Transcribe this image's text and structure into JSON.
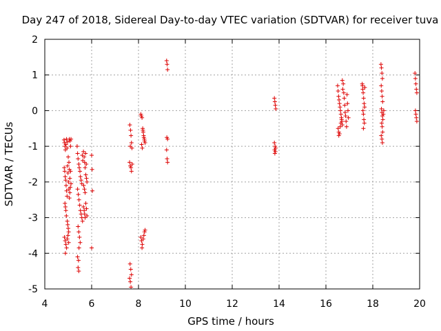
{
  "chart_data": {
    "type": "scatter",
    "title": "Day 247 of 2018, Sidereal Day-to-day VTEC variation (SDTVAR) for receiver tuva",
    "xlabel": "GPS time / hours",
    "ylabel": "SDTVAR / TECUs",
    "xlim": [
      4,
      20
    ],
    "ylim": [
      -5,
      2
    ],
    "xticks": [
      "4",
      "6",
      "8",
      "10",
      "12",
      "14",
      "16",
      "18",
      "20"
    ],
    "yticks": [
      "-5",
      "-4",
      "-3",
      "-2",
      "-1",
      "0",
      "1",
      "2"
    ],
    "grid": true,
    "marker": "+",
    "color": "#dd0000",
    "series": [
      {
        "name": "SDTVAR",
        "points": [
          [
            4.82,
            -0.82
          ],
          [
            4.84,
            -0.9
          ],
          [
            4.86,
            -1.0
          ],
          [
            4.88,
            -1.1
          ],
          [
            4.9,
            -0.95
          ],
          [
            4.93,
            -0.8
          ],
          [
            4.95,
            -1.05
          ],
          [
            4.97,
            -0.88
          ],
          [
            4.83,
            -1.6
          ],
          [
            4.85,
            -1.7
          ],
          [
            4.87,
            -1.85
          ],
          [
            4.89,
            -1.95
          ],
          [
            4.91,
            -2.1
          ],
          [
            4.93,
            -2.25
          ],
          [
            4.95,
            -2.4
          ],
          [
            4.97,
            -1.55
          ],
          [
            4.99,
            -1.75
          ],
          [
            5.01,
            -2.0
          ],
          [
            5.03,
            -2.2
          ],
          [
            5.05,
            -1.65
          ],
          [
            5.07,
            -1.9
          ],
          [
            5.09,
            -2.15
          ],
          [
            4.86,
            -2.6
          ],
          [
            4.88,
            -2.7
          ],
          [
            4.9,
            -2.8
          ],
          [
            4.92,
            -2.95
          ],
          [
            4.96,
            -3.1
          ],
          [
            4.98,
            -3.2
          ],
          [
            5.0,
            -3.3
          ],
          [
            5.02,
            -3.4
          ],
          [
            4.84,
            -3.55
          ],
          [
            4.87,
            -3.65
          ],
          [
            4.9,
            -3.75
          ],
          [
            4.93,
            -3.85
          ],
          [
            4.96,
            -3.6
          ],
          [
            4.99,
            -3.5
          ],
          [
            5.02,
            -3.7
          ],
          [
            4.88,
            -4.0
          ],
          [
            5.05,
            -2.45
          ],
          [
            5.07,
            -2.3
          ],
          [
            5.1,
            -1.7
          ],
          [
            5.12,
            -2.05
          ],
          [
            5.05,
            -0.8
          ],
          [
            5.08,
            -0.85
          ],
          [
            5.1,
            -1.0
          ],
          [
            5.12,
            -0.8
          ],
          [
            5.0,
            -1.3
          ],
          [
            5.03,
            -1.45
          ],
          [
            5.38,
            -1.0
          ],
          [
            5.4,
            -1.2
          ],
          [
            5.42,
            -1.35
          ],
          [
            5.45,
            -1.5
          ],
          [
            5.47,
            -1.6
          ],
          [
            5.5,
            -1.7
          ],
          [
            5.52,
            -1.85
          ],
          [
            5.55,
            -1.95
          ],
          [
            5.58,
            -2.05
          ],
          [
            5.6,
            -1.25
          ],
          [
            5.62,
            -1.4
          ],
          [
            5.65,
            -1.15
          ],
          [
            5.68,
            -1.3
          ],
          [
            5.7,
            -1.45
          ],
          [
            5.72,
            -1.6
          ],
          [
            5.4,
            -2.2
          ],
          [
            5.43,
            -2.35
          ],
          [
            5.46,
            -2.5
          ],
          [
            5.49,
            -2.65
          ],
          [
            5.52,
            -2.8
          ],
          [
            5.55,
            -2.9
          ],
          [
            5.58,
            -3.0
          ],
          [
            5.61,
            -3.1
          ],
          [
            5.42,
            -3.25
          ],
          [
            5.45,
            -3.4
          ],
          [
            5.48,
            -3.55
          ],
          [
            5.51,
            -3.7
          ],
          [
            5.46,
            -3.85
          ],
          [
            5.4,
            -4.1
          ],
          [
            5.44,
            -4.2
          ],
          [
            5.42,
            -4.4
          ],
          [
            5.45,
            -4.5
          ],
          [
            5.65,
            -2.7
          ],
          [
            5.68,
            -2.8
          ],
          [
            5.7,
            -2.9
          ],
          [
            5.72,
            -3.0
          ],
          [
            5.75,
            -2.6
          ],
          [
            5.78,
            -2.75
          ],
          [
            5.8,
            -2.95
          ],
          [
            5.66,
            -2.1
          ],
          [
            5.69,
            -2.2
          ],
          [
            5.72,
            -2.3
          ],
          [
            5.75,
            -1.8
          ],
          [
            5.78,
            -1.9
          ],
          [
            5.8,
            -2.0
          ],
          [
            5.74,
            -1.2
          ],
          [
            5.77,
            -1.5
          ],
          [
            6.0,
            -1.25
          ],
          [
            6.02,
            -1.65
          ],
          [
            6.03,
            -2.25
          ],
          [
            6.0,
            -3.85
          ],
          [
            7.63,
            -0.4
          ],
          [
            7.66,
            -0.55
          ],
          [
            7.68,
            -0.7
          ],
          [
            7.7,
            -0.9
          ],
          [
            7.72,
            -1.05
          ],
          [
            7.65,
            -1.0
          ],
          [
            7.62,
            -1.45
          ],
          [
            7.65,
            -1.55
          ],
          [
            7.68,
            -1.6
          ],
          [
            7.7,
            -1.7
          ],
          [
            7.73,
            -1.5
          ],
          [
            7.64,
            -4.3
          ],
          [
            7.67,
            -4.45
          ],
          [
            7.7,
            -4.6
          ],
          [
            7.62,
            -4.7
          ],
          [
            7.65,
            -4.8
          ],
          [
            7.68,
            -4.95
          ],
          [
            8.1,
            -0.1
          ],
          [
            8.12,
            -0.15
          ],
          [
            8.15,
            -0.2
          ],
          [
            8.18,
            -0.5
          ],
          [
            8.2,
            -0.6
          ],
          [
            8.22,
            -0.7
          ],
          [
            8.25,
            -0.8
          ],
          [
            8.28,
            -0.9
          ],
          [
            8.13,
            -0.95
          ],
          [
            8.16,
            -1.05
          ],
          [
            8.19,
            -0.55
          ],
          [
            8.23,
            -0.75
          ],
          [
            8.26,
            -0.85
          ],
          [
            8.1,
            -3.55
          ],
          [
            8.13,
            -3.65
          ],
          [
            8.16,
            -3.75
          ],
          [
            8.2,
            -3.6
          ],
          [
            8.23,
            -3.5
          ],
          [
            8.26,
            -3.4
          ],
          [
            8.28,
            -3.35
          ],
          [
            8.15,
            -3.85
          ],
          [
            9.2,
            1.4
          ],
          [
            9.22,
            1.3
          ],
          [
            9.24,
            1.15
          ],
          [
            9.21,
            -0.75
          ],
          [
            9.24,
            -0.8
          ],
          [
            9.2,
            -1.1
          ],
          [
            9.22,
            -1.35
          ],
          [
            9.24,
            -1.45
          ],
          [
            13.8,
            0.35
          ],
          [
            13.82,
            0.25
          ],
          [
            13.84,
            0.15
          ],
          [
            13.86,
            0.05
          ],
          [
            13.8,
            -0.9
          ],
          [
            13.83,
            -1.0
          ],
          [
            13.85,
            -1.05
          ],
          [
            13.81,
            -1.1
          ],
          [
            13.84,
            -1.15
          ],
          [
            13.82,
            -1.2
          ],
          [
            16.5,
            0.7
          ],
          [
            16.52,
            0.55
          ],
          [
            16.54,
            0.4
          ],
          [
            16.56,
            0.3
          ],
          [
            16.58,
            0.2
          ],
          [
            16.6,
            0.1
          ],
          [
            16.62,
            0.0
          ],
          [
            16.64,
            -0.1
          ],
          [
            16.66,
            -0.2
          ],
          [
            16.68,
            -0.3
          ],
          [
            16.7,
            -0.4
          ],
          [
            16.52,
            -0.5
          ],
          [
            16.55,
            -0.6
          ],
          [
            16.58,
            -0.65
          ],
          [
            16.61,
            -0.45
          ],
          [
            16.64,
            -0.35
          ],
          [
            16.67,
            -0.25
          ],
          [
            16.72,
            0.6
          ],
          [
            16.74,
            0.75
          ],
          [
            16.76,
            0.5
          ],
          [
            16.78,
            0.35
          ],
          [
            16.8,
            0.15
          ],
          [
            16.82,
            -0.05
          ],
          [
            16.84,
            -0.15
          ],
          [
            16.86,
            -0.3
          ],
          [
            16.88,
            -0.45
          ],
          [
            16.9,
            0.45
          ],
          [
            16.92,
            0.2
          ],
          [
            16.94,
            0.0
          ],
          [
            16.96,
            -0.2
          ],
          [
            16.7,
            0.85
          ],
          [
            16.55,
            -0.7
          ],
          [
            17.55,
            0.75
          ],
          [
            17.57,
            0.6
          ],
          [
            17.59,
            0.5
          ],
          [
            17.61,
            0.35
          ],
          [
            17.63,
            0.2
          ],
          [
            17.65,
            0.1
          ],
          [
            17.58,
            0.0
          ],
          [
            17.6,
            -0.1
          ],
          [
            17.62,
            -0.25
          ],
          [
            17.64,
            -0.35
          ],
          [
            17.6,
            -0.5
          ],
          [
            17.56,
            0.7
          ],
          [
            17.66,
            0.65
          ],
          [
            18.35,
            1.3
          ],
          [
            18.37,
            1.2
          ],
          [
            18.39,
            1.05
          ],
          [
            18.41,
            0.9
          ],
          [
            18.36,
            0.7
          ],
          [
            18.38,
            0.55
          ],
          [
            18.4,
            0.4
          ],
          [
            18.42,
            0.25
          ],
          [
            18.37,
            0.05
          ],
          [
            18.39,
            -0.05
          ],
          [
            18.41,
            -0.15
          ],
          [
            18.43,
            -0.25
          ],
          [
            18.38,
            -0.35
          ],
          [
            18.4,
            -0.45
          ],
          [
            18.42,
            -0.6
          ],
          [
            18.36,
            -0.7
          ],
          [
            18.39,
            -0.8
          ],
          [
            18.41,
            -0.9
          ],
          [
            18.45,
            -0.1
          ],
          [
            18.47,
            0.0
          ],
          [
            19.8,
            1.05
          ],
          [
            19.82,
            0.9
          ],
          [
            19.84,
            0.75
          ],
          [
            19.86,
            0.6
          ],
          [
            19.88,
            0.5
          ],
          [
            19.82,
            0.0
          ],
          [
            19.84,
            -0.1
          ],
          [
            19.86,
            -0.2
          ],
          [
            19.88,
            -0.3
          ]
        ]
      }
    ]
  }
}
